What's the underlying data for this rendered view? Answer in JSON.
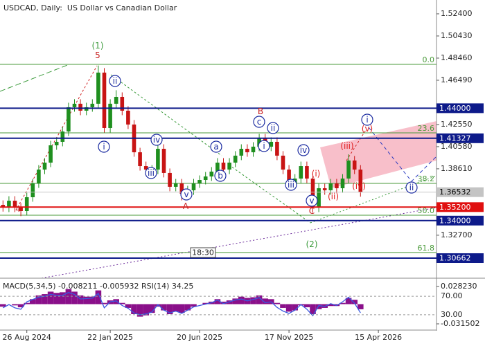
{
  "chart_data": [
    {
      "type": "candlestick",
      "title": "USDCAD, Daily:  US Dollar vs Canadian Dollar",
      "categories": [
        null,
        null,
        null,
        null,
        "26 Aug 2024",
        null,
        null,
        null,
        null,
        null,
        null,
        null,
        null,
        null,
        null,
        null,
        null,
        null,
        "22 Jan 2025",
        null,
        null,
        null,
        null,
        null,
        null,
        null,
        null,
        null,
        null,
        null,
        null,
        null,
        null,
        "20 Jun 2025",
        null,
        null,
        null,
        null,
        null,
        null,
        null,
        null,
        null,
        null,
        null,
        null,
        null,
        null,
        "17 Nov 2025",
        null,
        null,
        null,
        null,
        null,
        null,
        null,
        null,
        null,
        null,
        null,
        null,
        null,
        null,
        "15 Apr 2026"
      ],
      "open": [
        1.354,
        1.3516,
        1.3577,
        1.3516,
        1.3485,
        1.3608,
        1.3731,
        1.3854,
        1.3916,
        1.407,
        1.4101,
        1.4193,
        1.4409,
        1.444,
        1.4378,
        1.4409,
        1.444,
        1.4717,
        1.4224,
        1.444,
        1.4501,
        1.4378,
        1.4255,
        1.4008,
        1.3885,
        1.3854,
        1.3854,
        1.4039,
        1.3824,
        1.3701,
        1.3731,
        1.3639,
        1.367,
        1.3731,
        1.3762,
        1.3793,
        1.3836,
        1.3916,
        1.3854,
        1.3916,
        1.3978,
        1.4039,
        1.4008,
        1.4058,
        1.4132,
        1.4058,
        1.4101,
        1.3978,
        1.3854,
        1.3731,
        1.3774,
        1.3885,
        1.3774,
        1.3516,
        1.3688,
        1.367,
        1.3731,
        1.3688,
        1.3774,
        1.3935,
        1.3854,
        null,
        null,
        null
      ],
      "high": [
        1.358,
        1.3617,
        1.3617,
        1.3556,
        1.3648,
        1.3771,
        1.3894,
        1.3956,
        1.411,
        1.4141,
        1.4233,
        1.4449,
        1.448,
        1.448,
        1.4449,
        1.448,
        1.478,
        1.4757,
        1.448,
        1.456,
        1.4541,
        1.4418,
        1.4295,
        1.4048,
        1.3925,
        1.3894,
        1.4079,
        1.4079,
        1.3864,
        1.3771,
        1.3771,
        1.371,
        1.3771,
        1.3802,
        1.3833,
        1.3876,
        1.3956,
        1.3956,
        1.3956,
        1.4018,
        1.4079,
        1.4079,
        1.4098,
        1.4172,
        1.4172,
        1.4141,
        1.4141,
        1.4018,
        1.3894,
        1.3814,
        1.3925,
        1.3925,
        1.3814,
        1.3728,
        1.3728,
        1.3771,
        1.3771,
        1.3814,
        1.399,
        1.3975,
        1.3894,
        null,
        null,
        null
      ],
      "low": [
        1.348,
        1.3476,
        1.3476,
        1.344,
        1.3445,
        1.3568,
        1.3691,
        1.3814,
        1.3876,
        1.403,
        1.4061,
        1.4153,
        1.4369,
        1.4338,
        1.4338,
        1.4369,
        1.44,
        1.4184,
        1.4184,
        1.44,
        1.4338,
        1.4215,
        1.3968,
        1.3845,
        1.3814,
        1.3814,
        1.3814,
        1.3784,
        1.3661,
        1.3661,
        1.358,
        1.3599,
        1.363,
        1.3691,
        1.3722,
        1.3753,
        1.3796,
        1.3814,
        1.3814,
        1.3876,
        1.3938,
        1.3968,
        1.3968,
        1.4018,
        1.4018,
        1.4018,
        1.3938,
        1.3814,
        1.3691,
        1.3691,
        1.3734,
        1.3734,
        1.347,
        1.3476,
        1.363,
        1.363,
        1.3648,
        1.3648,
        1.3734,
        1.3814,
        1.3613,
        null,
        null,
        null
      ],
      "close": [
        1.3516,
        1.3577,
        1.3516,
        1.3485,
        1.3608,
        1.3731,
        1.3854,
        1.3916,
        1.407,
        1.4101,
        1.4193,
        1.4409,
        1.444,
        1.4378,
        1.4409,
        1.444,
        1.4717,
        1.4224,
        1.444,
        1.4501,
        1.4378,
        1.4255,
        1.4008,
        1.3885,
        1.3854,
        1.3854,
        1.4039,
        1.3824,
        1.3701,
        1.3731,
        1.3639,
        1.367,
        1.3731,
        1.3762,
        1.3793,
        1.3836,
        1.3916,
        1.3854,
        1.3916,
        1.3978,
        1.4039,
        1.4008,
        1.4058,
        1.4132,
        1.4058,
        1.4101,
        1.3978,
        1.3854,
        1.3731,
        1.3774,
        1.3885,
        1.3774,
        1.3516,
        1.3688,
        1.367,
        1.3731,
        1.3688,
        1.3774,
        1.3935,
        1.3854,
        1.3653,
        null,
        null,
        null
      ],
      "up_color": "#1f8f1f",
      "down_color": "#c81414",
      "ylim": [
        1.29,
        1.5363
      ],
      "yticks": [
        {
          "value": 1.524,
          "label": "1.52400"
        },
        {
          "value": 1.5043,
          "label": "1.50430"
        },
        {
          "value": 1.4846,
          "label": "1.48460"
        },
        {
          "value": 1.4649,
          "label": "1.46490"
        },
        {
          "value": 1.4255,
          "label": "1.42550"
        },
        {
          "value": 1.4058,
          "label": "1.40580"
        },
        {
          "value": 1.3861,
          "label": "1.38610"
        },
        {
          "value": 1.327,
          "label": "1.32700"
        }
      ],
      "levels": [
        {
          "value": 1.44,
          "label": "1.44000",
          "color": "#0d1a8a",
          "text_color": "#ffffff"
        },
        {
          "value": 1.41327,
          "label": "1.41327",
          "color": "#0d1a8a",
          "text_color": "#ffffff"
        },
        {
          "value": 1.36532,
          "label": "1.36532",
          "color": "#c4c4c4",
          "text_color": "#000000"
        },
        {
          "value": 1.352,
          "label": "1.35200",
          "color": "#e01010",
          "text_color": "#ffffff"
        },
        {
          "value": 1.34,
          "label": "1.34000",
          "color": "#0d1a8a",
          "text_color": "#ffffff"
        },
        {
          "value": 1.30662,
          "label": "1.30662",
          "color": "#0d1a8a",
          "text_color": "#ffffff"
        }
      ],
      "fib_color": "#4a9a3a",
      "fib_levels": [
        {
          "label": "0.0",
          "price": 1.479
        },
        {
          "label": "23.6",
          "price": 1.4181
        },
        {
          "label": "38.2",
          "price": 1.3731
        },
        {
          "label": "50.0",
          "price": 1.3448
        },
        {
          "label": "61.8",
          "price": 1.3116
        }
      ],
      "annotations": [
        {
          "text": "(1)",
          "color": "#3a9a3a",
          "circled": false
        },
        {
          "text": "5",
          "color": "#c82020",
          "circled": false
        },
        {
          "text": "4",
          "color": "#c82020",
          "circled": false
        },
        {
          "text": "ii",
          "color": "#1a2aa0",
          "circled": true
        },
        {
          "text": "i",
          "color": "#1a2aa0",
          "circled": true
        },
        {
          "text": "iv",
          "color": "#1a2aa0",
          "circled": true
        },
        {
          "text": "iii",
          "color": "#1a2aa0",
          "circled": true
        },
        {
          "text": "v",
          "color": "#1a2aa0",
          "circled": true
        },
        {
          "text": "A",
          "color": "#c82020",
          "circled": false
        },
        {
          "text": "a",
          "color": "#1a2aa0",
          "circled": true
        },
        {
          "text": "b",
          "color": "#1a2aa0",
          "circled": true
        },
        {
          "text": "B",
          "color": "#c82020",
          "circled": false
        },
        {
          "text": "c",
          "color": "#1a2aa0",
          "circled": true
        },
        {
          "text": "ii",
          "color": "#1a2aa0",
          "circled": true
        },
        {
          "text": "i",
          "color": "#1a2aa0",
          "circled": true
        },
        {
          "text": "iv",
          "color": "#1a2aa0",
          "circled": true
        },
        {
          "text": "iii",
          "color": "#1a2aa0",
          "circled": true
        },
        {
          "text": "v",
          "color": "#1a2aa0",
          "circled": true
        },
        {
          "text": "C",
          "color": "#c82020",
          "circled": false
        },
        {
          "text": "(2)",
          "color": "#3a9a3a",
          "circled": false
        },
        {
          "text": "(i)",
          "color": "#e02020",
          "circled": false
        },
        {
          "text": "(ii)",
          "color": "#e02020",
          "circled": false
        },
        {
          "text": "(iii)",
          "color": "#e02020",
          "circled": false
        },
        {
          "text": "(iv)",
          "color": "#e02020",
          "circled": false
        },
        {
          "text": "(v)",
          "color": "#e02020",
          "circled": false
        },
        {
          "text": "i",
          "color": "#1a2aa0",
          "circled": true
        },
        {
          "text": "ii",
          "color": "#1a2aa0",
          "circled": true
        }
      ],
      "time_label": "18:30"
    },
    {
      "type": "indicator",
      "title": "MACD(5,34,5) -0.008211 -0.005932 RSI(14) 34.25",
      "macd": {
        "color": "#8a108a",
        "values": [
          -0.004,
          0.0,
          -0.002,
          -0.005,
          0.002,
          0.008,
          0.014,
          0.016,
          0.02,
          0.018,
          0.019,
          0.024,
          0.02,
          0.014,
          0.012,
          0.012,
          0.022,
          0.002,
          0.006,
          0.008,
          0.002,
          -0.006,
          -0.016,
          -0.02,
          -0.018,
          -0.014,
          -0.004,
          -0.01,
          -0.016,
          -0.012,
          -0.014,
          -0.01,
          -0.004,
          0.0,
          0.002,
          0.004,
          0.008,
          0.004,
          0.006,
          0.009,
          0.012,
          0.01,
          0.011,
          0.014,
          0.009,
          0.008,
          0.002,
          -0.006,
          -0.012,
          -0.01,
          -0.002,
          -0.005,
          -0.016,
          -0.008,
          -0.006,
          -0.003,
          -0.003,
          0.002,
          0.01,
          0.007,
          -0.008211,
          null,
          null,
          null
        ]
      },
      "rsi": {
        "color": "#3a5ae0",
        "values": [
          45,
          52,
          45,
          42,
          58,
          63,
          68,
          70,
          74,
          72,
          72,
          78,
          74,
          64,
          65,
          66,
          76,
          45,
          58,
          60,
          50,
          44,
          34,
          30,
          32,
          36,
          52,
          40,
          34,
          38,
          33,
          40,
          47,
          50,
          53,
          56,
          62,
          54,
          58,
          62,
          64,
          60,
          63,
          67,
          56,
          58,
          46,
          38,
          33,
          40,
          52,
          42,
          28,
          50,
          48,
          54,
          50,
          58,
          68,
          55,
          34.25,
          null,
          null,
          null
        ]
      },
      "ylim": [
        -0.031502,
        0.02823
      ],
      "yticks": [
        {
          "value": 0.02823,
          "label": "0.028230"
        },
        {
          "value": -0.031502,
          "label": "-0.031502"
        }
      ],
      "y2lim": [
        0,
        100
      ],
      "y2ticks": [
        {
          "value": 70,
          "label": "70.00"
        },
        {
          "value": 30,
          "label": "30.00"
        }
      ]
    }
  ]
}
